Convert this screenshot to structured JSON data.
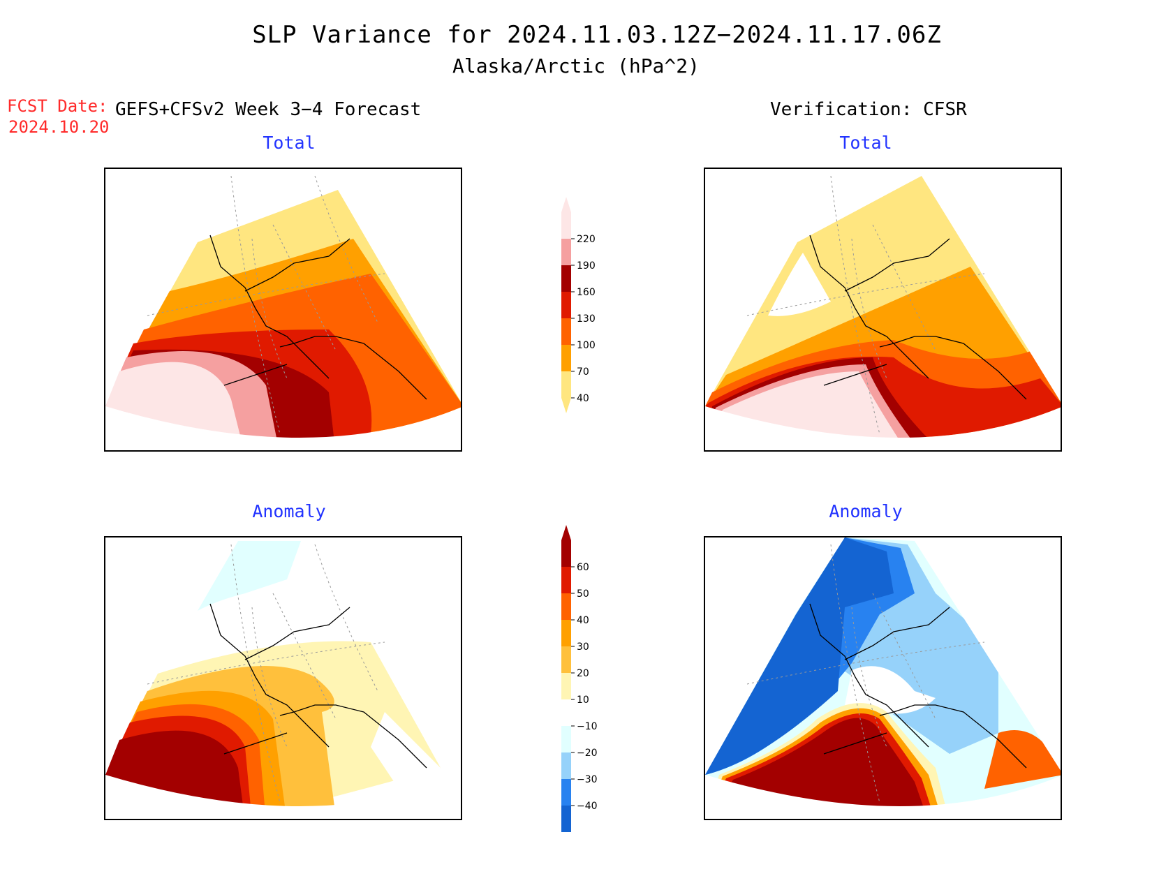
{
  "title": "SLP Variance for 2024.11.03.12Z−2024.11.17.06Z",
  "subtitle": "Alaska/Arctic (hPa^2)",
  "fcst_label": "FCST Date:",
  "fcst_date": "2024.10.20",
  "left_header": "GEFS+CFSv2 Week 3−4 Forecast",
  "right_header": "Verification: CFSR",
  "panels": {
    "fcst_total": "Total",
    "verif_total": "Total",
    "fcst_anomaly": "Anomaly",
    "verif_anomaly": "Anomaly"
  },
  "colorbar_total": {
    "levels": [
      "40",
      "70",
      "100",
      "130",
      "160",
      "190",
      "220"
    ],
    "colors": [
      "#ffe680",
      "#ffa000",
      "#ff6200",
      "#e01a00",
      "#a30000",
      "#f5a0a0",
      "#fde6e6"
    ]
  },
  "colorbar_anomaly": {
    "levels": [
      "−40",
      "−30",
      "−20",
      "−10",
      "10",
      "20",
      "30",
      "40",
      "50",
      "60"
    ],
    "colors": [
      "#1464d2",
      "#2882f0",
      "#96d2fa",
      "#e1ffff",
      "#ffffff",
      "#fff5b4",
      "#ffc03c",
      "#ffa000",
      "#ff6200",
      "#e01a00",
      "#a30000"
    ]
  }
}
